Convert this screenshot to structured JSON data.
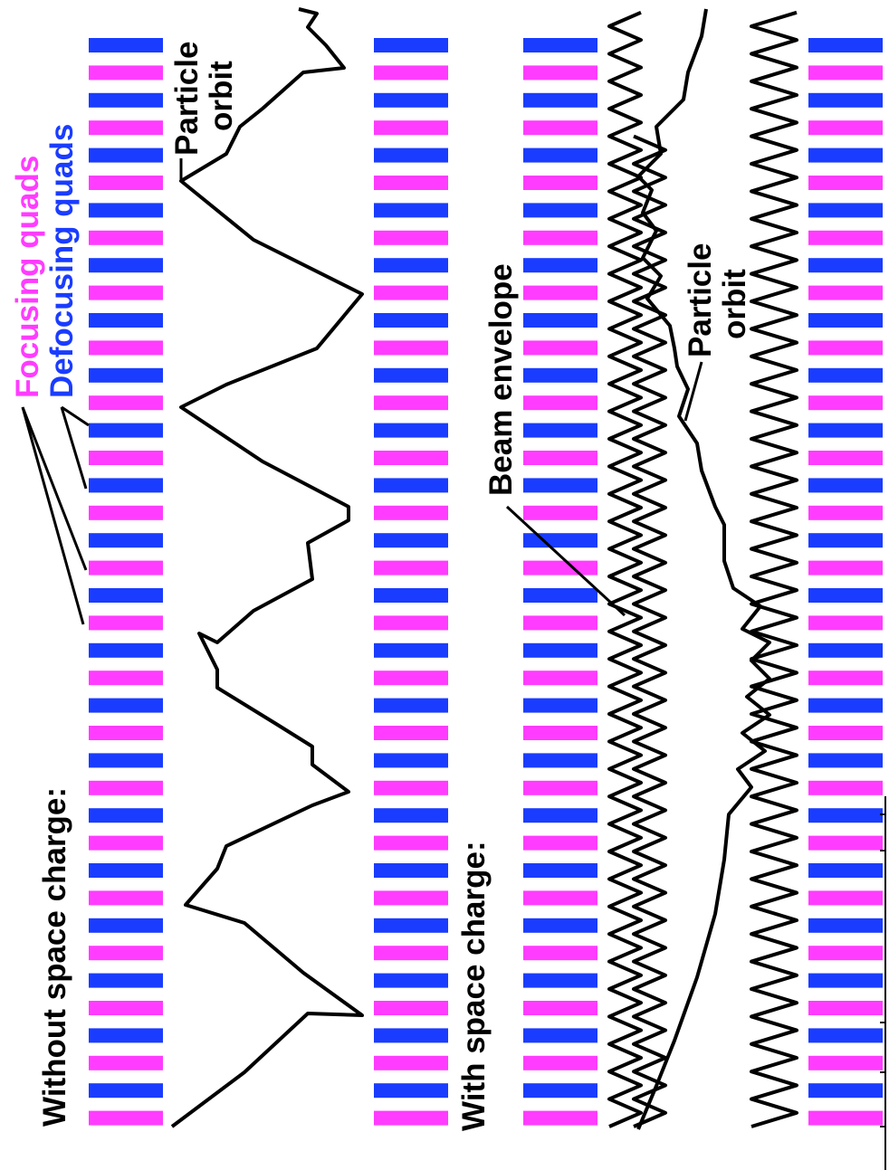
{
  "labels": {
    "focusing_quads": "Focusing quads",
    "defocusing_quads": "Defocusing quads",
    "without_space_charge": "Without space charge:",
    "with_space_charge": "With space charge:",
    "particle_orbit_top_line1": "Particle",
    "particle_orbit_top_line2": "orbit",
    "beam_envelope": "Beam envelope",
    "particle_orbit_bottom_line1": "Particle",
    "particle_orbit_bottom_line2": "orbit"
  },
  "colors": {
    "focusing": "#ff3cff",
    "defocusing": "#1a3cff",
    "line": "#000000",
    "background": "#ffffff"
  },
  "quad_columns": 4,
  "quads_per_column": 40
}
